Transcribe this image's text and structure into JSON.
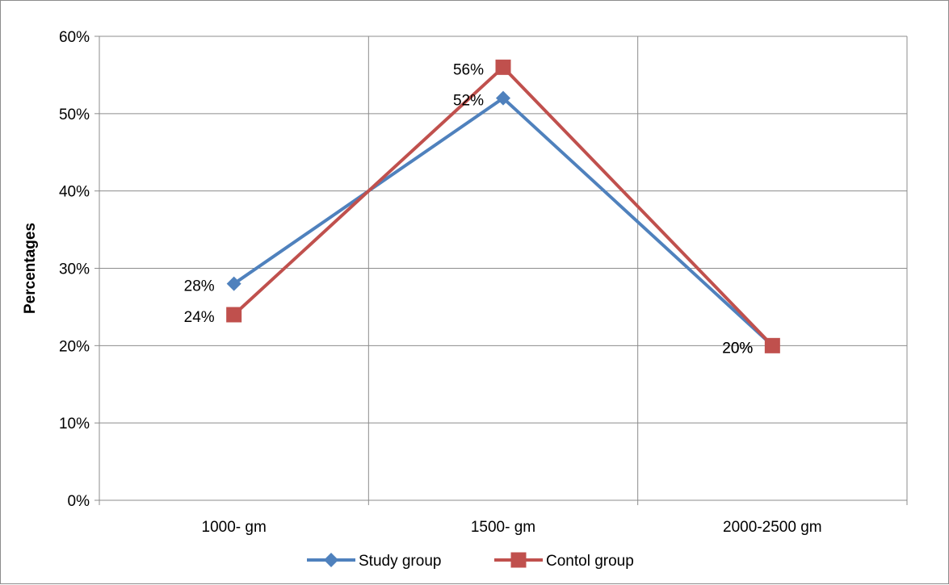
{
  "chart_data": {
    "type": "line",
    "title": "",
    "xlabel": "",
    "ylabel": "Percentages",
    "categories": [
      "1000- gm",
      "1500- gm",
      "2000-2500 gm"
    ],
    "ylim": [
      0,
      60
    ],
    "yticks": [
      "0%",
      "10%",
      "20%",
      "30%",
      "40%",
      "50%",
      "60%"
    ],
    "grid": true,
    "legend_position": "bottom",
    "series": [
      {
        "name": "Study group",
        "values": [
          28,
          52,
          20
        ],
        "labels": [
          "28%",
          "52%",
          "20%"
        ],
        "color": "#4f81bd",
        "marker": "diamond"
      },
      {
        "name": "Contol group",
        "values": [
          24,
          56,
          20
        ],
        "labels": [
          "24%",
          "56%",
          "20%"
        ],
        "color": "#c0504d",
        "marker": "square"
      }
    ]
  }
}
